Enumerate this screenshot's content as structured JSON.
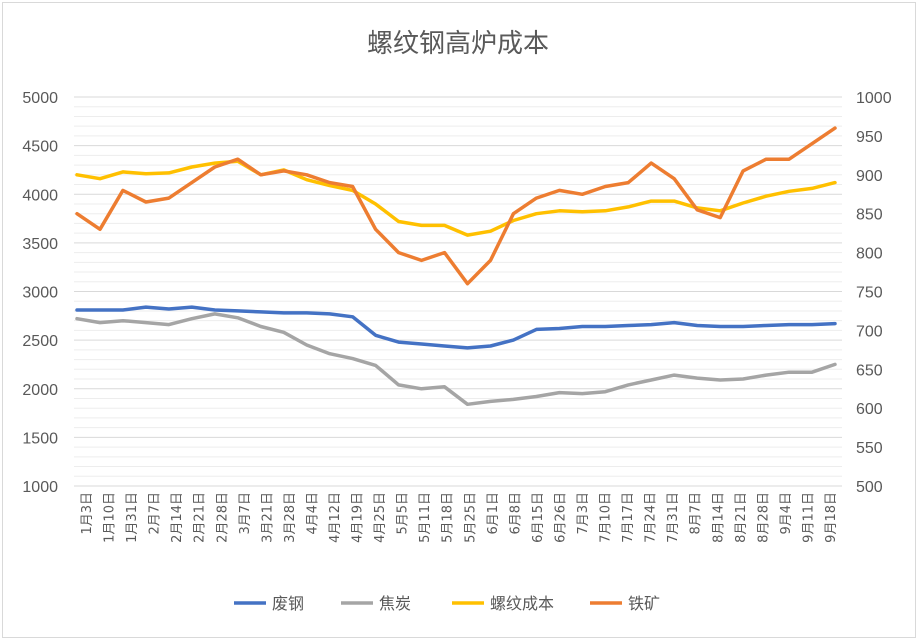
{
  "chart_data": {
    "type": "line",
    "title": "螺纹钢高炉成本",
    "y_left": {
      "min": 1000,
      "max": 5000,
      "step": 500,
      "ticks": [
        "5000",
        "4500",
        "4000",
        "3500",
        "3000",
        "2500",
        "2000",
        "1500",
        "1000"
      ]
    },
    "y_right": {
      "min": 500,
      "max": 1000,
      "step": 50,
      "ticks": [
        "1000",
        "950",
        "900",
        "850",
        "800",
        "750",
        "700",
        "650",
        "600",
        "550",
        "500"
      ]
    },
    "x_labels": [
      "1月3日",
      "1月10日",
      "1月31日",
      "2月7日",
      "2月14日",
      "2月21日",
      "2月28日",
      "3月7日",
      "3月21日",
      "3月28日",
      "4月4日",
      "4月12日",
      "4月19日",
      "4月25日",
      "5月5日",
      "5月11日",
      "5月18日",
      "5月25日",
      "6月1日",
      "6月8日",
      "6月15日",
      "6月26日",
      "7月3日",
      "7月10日",
      "7月17日",
      "7月24日",
      "7月31日",
      "8月7日",
      "8月14日",
      "8月21日",
      "8月28日",
      "9月4日",
      "9月11日",
      "9月18日"
    ],
    "grid": true,
    "legend_position": "bottom",
    "series": [
      {
        "name": "废钢",
        "axis": "left",
        "color": "#4472c4",
        "values": [
          2810,
          2810,
          2810,
          2840,
          2820,
          2840,
          2810,
          2800,
          2790,
          2780,
          2780,
          2770,
          2740,
          2550,
          2480,
          2460,
          2440,
          2420,
          2440,
          2500,
          2610,
          2620,
          2640,
          2640,
          2650,
          2660,
          2680,
          2650,
          2640,
          2640,
          2650,
          2660,
          2660,
          2670
        ]
      },
      {
        "name": "焦炭",
        "axis": "left",
        "color": "#a5a5a5",
        "values": [
          2720,
          2680,
          2700,
          2680,
          2660,
          2720,
          2770,
          2730,
          2640,
          2580,
          2450,
          2360,
          2310,
          2240,
          2040,
          2000,
          2020,
          1840,
          1870,
          1890,
          1920,
          1960,
          1950,
          1970,
          2040,
          2090,
          2140,
          2110,
          2090,
          2100,
          2140,
          2170,
          2170,
          2250
        ]
      },
      {
        "name": "螺纹成本",
        "axis": "left",
        "color": "#ffc000",
        "values": [
          4200,
          4160,
          4230,
          4210,
          4220,
          4280,
          4320,
          4340,
          4200,
          4250,
          4150,
          4090,
          4040,
          3900,
          3720,
          3680,
          3680,
          3580,
          3620,
          3730,
          3800,
          3830,
          3820,
          3830,
          3870,
          3930,
          3930,
          3860,
          3830,
          3910,
          3980,
          4030,
          4060,
          4120
        ]
      },
      {
        "name": "铁矿",
        "axis": "right",
        "color": "#ed7d31",
        "values": [
          850,
          830,
          880,
          865,
          870,
          890,
          910,
          920,
          900,
          905,
          900,
          890,
          885,
          830,
          800,
          790,
          800,
          760,
          790,
          850,
          870,
          880,
          875,
          885,
          890,
          915,
          895,
          855,
          845,
          905,
          920,
          920,
          940,
          960
        ]
      }
    ]
  }
}
